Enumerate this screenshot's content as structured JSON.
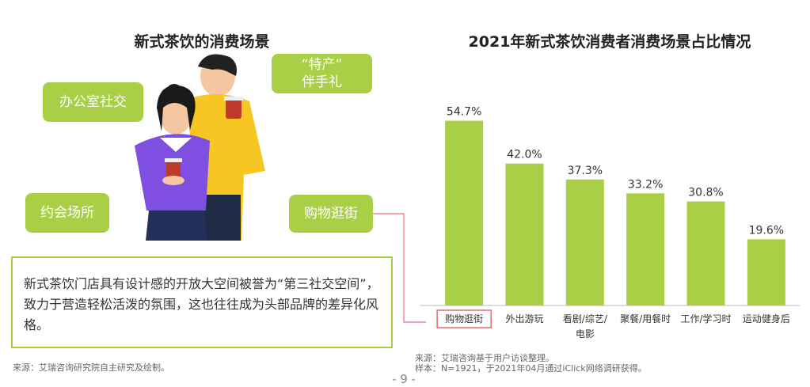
{
  "left": {
    "title": "新式茶饮的消费场景",
    "tags": {
      "office": "办公室社交",
      "gift": "“特产”\n伴手礼",
      "date": "约会场所",
      "shopping": "购物逛街"
    },
    "callout": "新式茶饮门店具有设计感的开放大空间被誉为“第三社交空间”，致力于营造轻松活泼的氛围，这也往往成为头部品牌的差异化风格。",
    "source": "来源：艾瑞咨询研究院自主研究及绘制。"
  },
  "right": {
    "source_line1": "来源：艾瑞咨询基于用户访谈整理。",
    "source_line2": "样本：N=1921，于2021年04月通过iClick网络调研获得。"
  },
  "page_number": "- 9 -",
  "colors": {
    "accent": "#a8cf45",
    "highlight": "#e8727b"
  },
  "chart_data": {
    "type": "bar",
    "title": "2021年新式茶饮消费者消费场景占比情况",
    "categories": [
      "购物逛街",
      "外出游玩",
      "看剧/综艺/电影",
      "聚餐/用餐时",
      "工作/学习时",
      "运动健身后"
    ],
    "values": [
      54.7,
      42.0,
      37.3,
      33.2,
      30.8,
      19.6
    ],
    "value_labels": [
      "54.7%",
      "42.0%",
      "37.3%",
      "33.2%",
      "30.8%",
      "19.6%"
    ],
    "highlighted_category": "购物逛街",
    "unit": "%",
    "ylim": [
      0,
      60
    ],
    "grid": false,
    "legend": "none"
  }
}
